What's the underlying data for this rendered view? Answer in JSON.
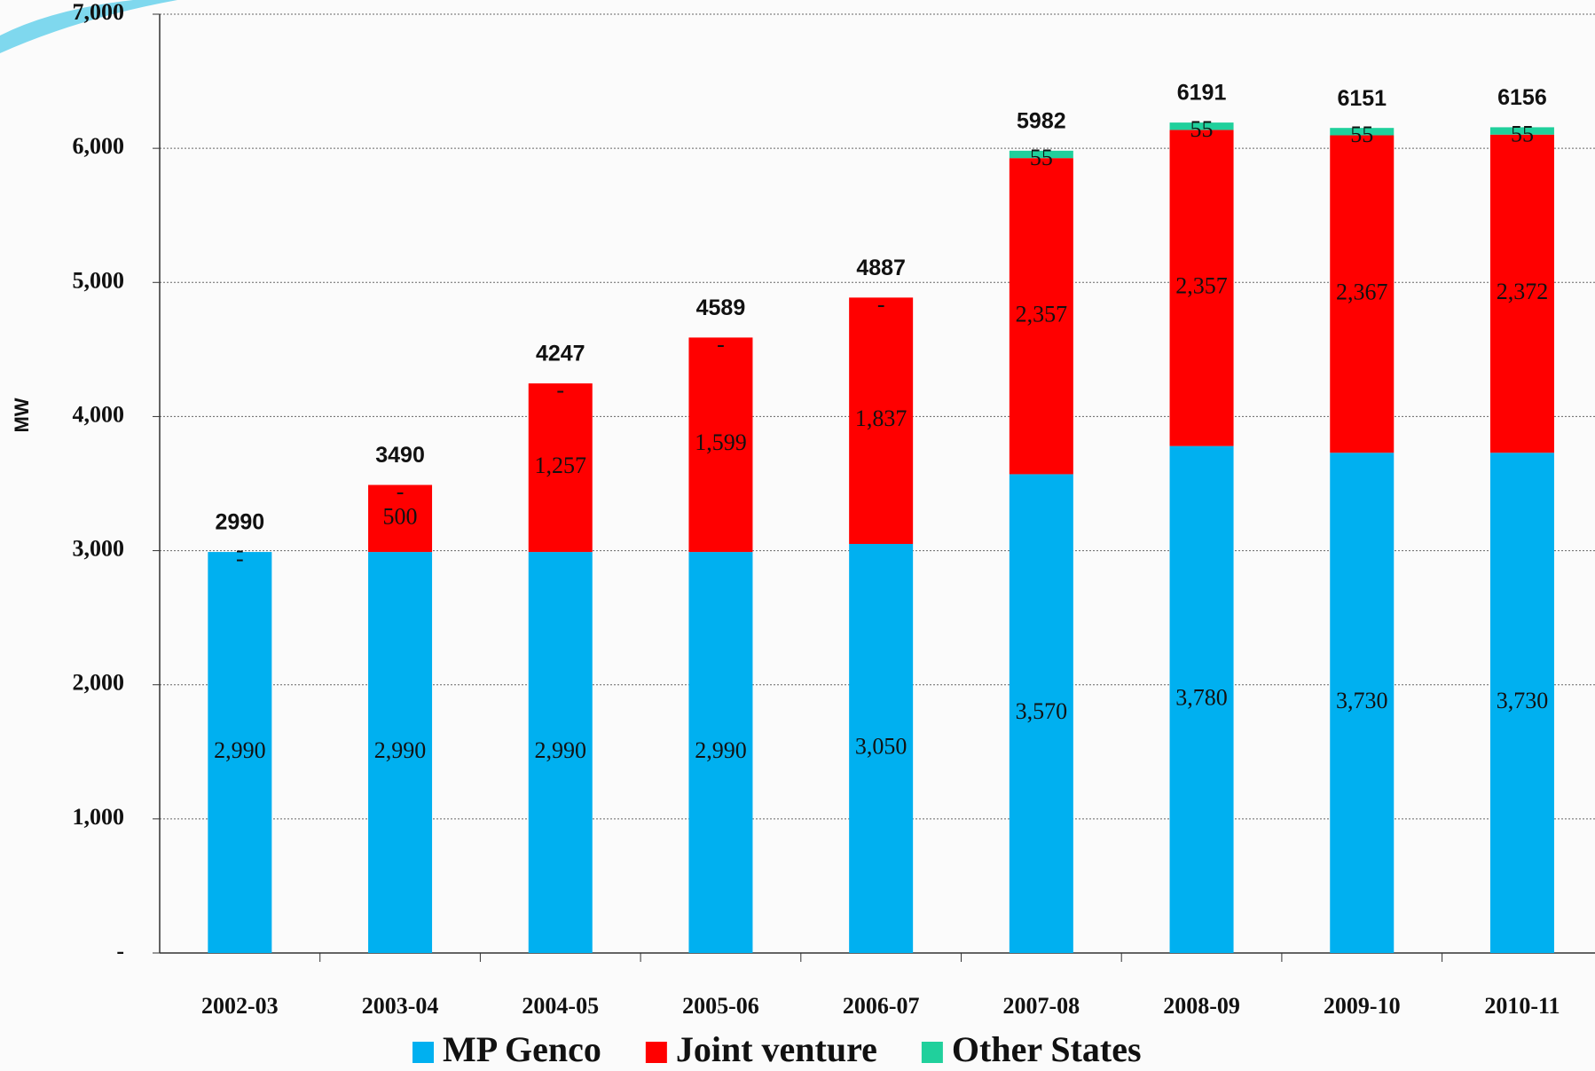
{
  "chart_data": {
    "type": "stacked_bar",
    "y_label": "MW",
    "categories": [
      "2002-03",
      "2003-04",
      "2004-05",
      "2005-06",
      "2006-07",
      "2007-08",
      "2008-09",
      "2009-10",
      "2010-11"
    ],
    "series": [
      {
        "name": "MP Genco",
        "color": "#00b0f0",
        "values": [
          2990,
          2990,
          2990,
          2990,
          3050,
          3570,
          3780,
          3730,
          3730
        ],
        "value_labels": [
          "2,990",
          "2,990",
          "2,990",
          "2,990",
          "3,050",
          "3,570",
          "3,780",
          "3,730",
          "3,730"
        ]
      },
      {
        "name": "Joint venture",
        "color": "#ff0000",
        "values": [
          0,
          500,
          1257,
          1599,
          1837,
          2357,
          2357,
          2367,
          2372
        ],
        "value_labels": [
          "-",
          "500",
          "1,257",
          "1,599",
          "1,837",
          "2,357",
          "2,357",
          "2,367",
          "2,372"
        ]
      },
      {
        "name": "Other States",
        "color": "#20d09c",
        "values": [
          0,
          0,
          0,
          0,
          0,
          55,
          55,
          55,
          55
        ],
        "value_labels": [
          "-",
          "-",
          "-",
          "-",
          "-",
          "55",
          "55",
          "55",
          "55"
        ]
      }
    ],
    "totals": [
      2990,
      3490,
      4247,
      4589,
      4887,
      5982,
      6191,
      6151,
      6156
    ],
    "ylim": [
      0,
      7000
    ],
    "yticks": [
      {
        "value": 0,
        "label": "-"
      },
      {
        "value": 1000,
        "label": "1,000"
      },
      {
        "value": 2000,
        "label": "2,000"
      },
      {
        "value": 3000,
        "label": "3,000"
      },
      {
        "value": 4000,
        "label": "4,000"
      },
      {
        "value": 5000,
        "label": "5,000"
      },
      {
        "value": 6000,
        "label": "6,000"
      },
      {
        "value": 7000,
        "label": "7,000"
      }
    ],
    "grid": true
  }
}
